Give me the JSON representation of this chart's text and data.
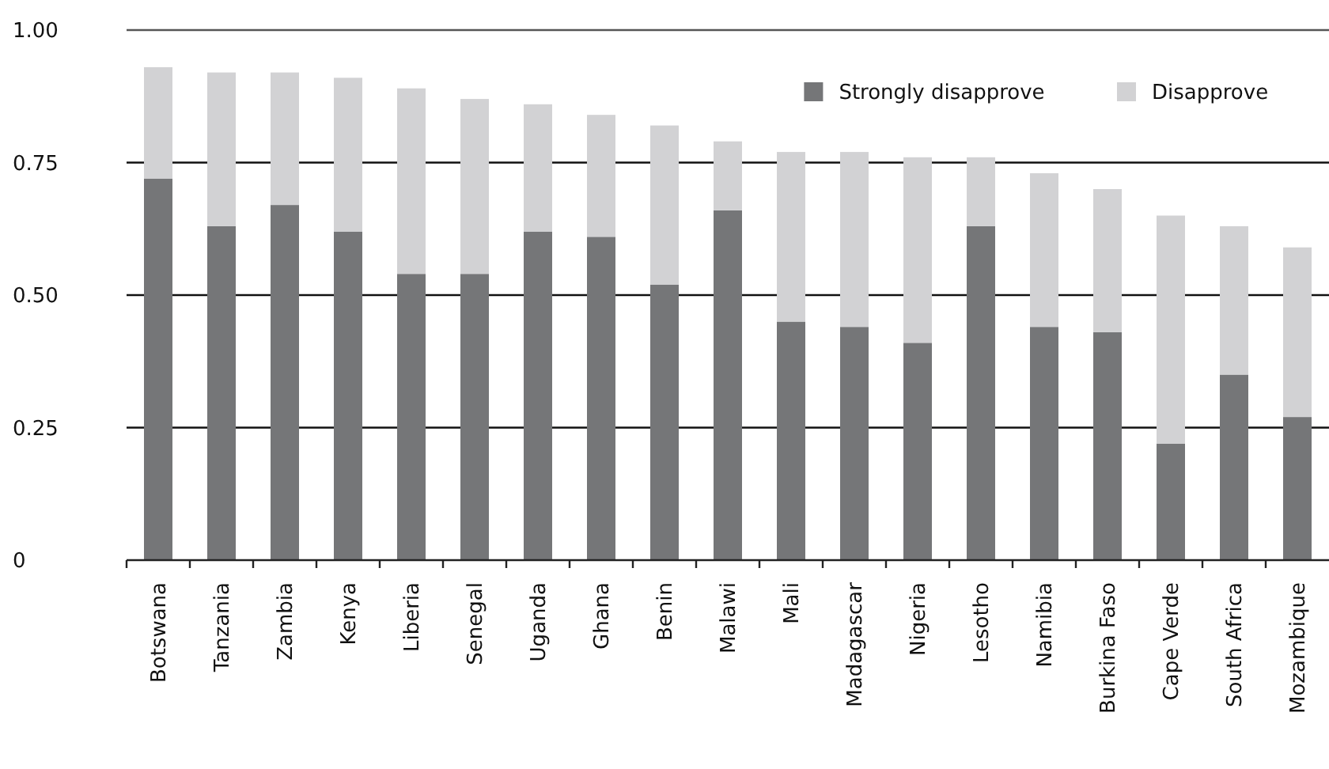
{
  "chart_data": {
    "type": "bar",
    "stacked": true,
    "categories": [
      "Botswana",
      "Tanzania",
      "Zambia",
      "Kenya",
      "Liberia",
      "Senegal",
      "Uganda",
      "Ghana",
      "Benin",
      "Malawi",
      "Mali",
      "Madagascar",
      "Nigeria",
      "Lesotho",
      "Namibia",
      "Burkina Faso",
      "Cape Verde",
      "South Africa",
      "Mozambique"
    ],
    "series": [
      {
        "name": "Strongly disapprove",
        "color": "#757678",
        "values": [
          0.72,
          0.63,
          0.67,
          0.62,
          0.54,
          0.54,
          0.62,
          0.61,
          0.52,
          0.66,
          0.45,
          0.44,
          0.41,
          0.63,
          0.44,
          0.43,
          0.22,
          0.35,
          0.27
        ]
      },
      {
        "name": "Disapprove",
        "color": "#d2d2d4",
        "values": [
          0.21,
          0.29,
          0.25,
          0.29,
          0.35,
          0.33,
          0.24,
          0.23,
          0.3,
          0.13,
          0.32,
          0.33,
          0.35,
          0.13,
          0.29,
          0.27,
          0.43,
          0.28,
          0.32
        ]
      }
    ],
    "ylim": [
      0,
      1
    ],
    "yticks": [
      0,
      {
        "value": 0.25,
        "label": "0.25"
      },
      {
        "value": 0.5,
        "label": "0.50"
      },
      0.75,
      {
        "value": 1,
        "label": "1.00"
      }
    ],
    "grid": "y",
    "legend": "top right"
  }
}
